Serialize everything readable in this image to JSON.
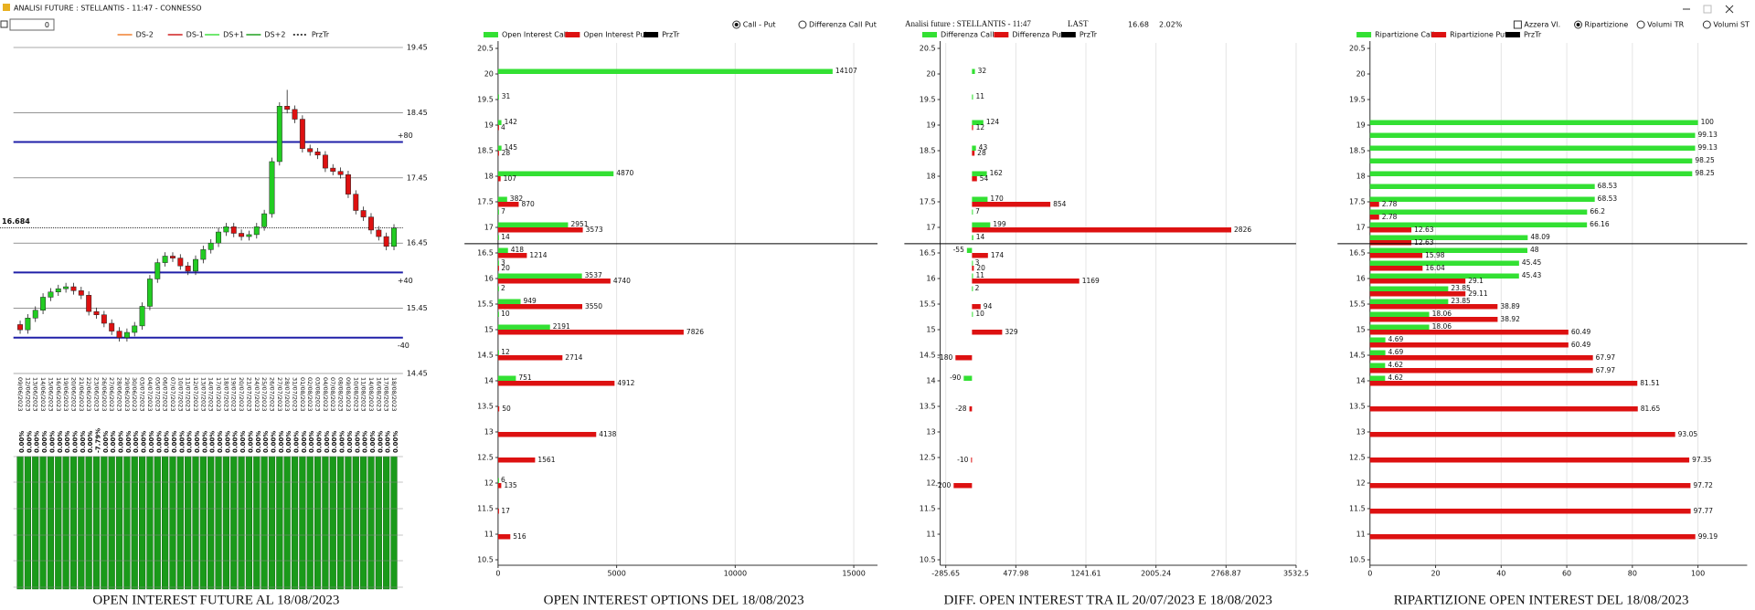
{
  "window": {
    "title": "ANALISI FUTURE : STELLANTIS - 11:47 - CONNESSO",
    "input_value": "0"
  },
  "header": {
    "title": "Analisi future : STELLANTIS - 11:47",
    "last_label": "LAST",
    "last": 16.68,
    "change": "2.02%"
  },
  "controls": {
    "options_mode": [
      {
        "label": "Call - Put",
        "checked": true
      },
      {
        "label": "Differenza Call Put",
        "checked": false
      }
    ],
    "reset": {
      "label": "Azzera Vl.",
      "checked": false
    },
    "split_mode": [
      {
        "label": "Ripartizione",
        "checked": true
      },
      {
        "label": "Volumi TR",
        "checked": false
      },
      {
        "label": "Volumi ST",
        "checked": false
      }
    ]
  },
  "chart_data": [
    {
      "type": "candlestick",
      "title": "OPEN INTEREST FUTURE AL 18/08/2023",
      "categories": [
        "09/06/2023",
        "12/06/2023",
        "13/06/2023",
        "14/06/2023",
        "15/06/2023",
        "16/06/2023",
        "19/06/2023",
        "20/06/2023",
        "21/06/2023",
        "22/06/2023",
        "23/06/2023",
        "26/06/2023",
        "27/06/2023",
        "28/06/2023",
        "29/06/2023",
        "30/06/2023",
        "03/07/2023",
        "04/07/2023",
        "05/07/2023",
        "06/07/2023",
        "07/07/2023",
        "10/07/2023",
        "11/07/2023",
        "12/07/2023",
        "13/07/2023",
        "14/07/2023",
        "17/07/2023",
        "18/07/2023",
        "19/07/2023",
        "20/07/2023",
        "21/07/2023",
        "24/07/2023",
        "25/07/2023",
        "26/07/2023",
        "27/07/2023",
        "28/07/2023",
        "31/07/2023",
        "01/08/2023",
        "02/08/2023",
        "03/08/2023",
        "04/08/2023",
        "07/08/2023",
        "08/08/2023",
        "09/08/2023",
        "10/08/2023",
        "11/08/2023",
        "14/08/2023",
        "16/08/2023",
        "17/08/2023",
        "18/08/2023"
      ],
      "open": [
        15.2,
        15.12,
        15.3,
        15.42,
        15.62,
        15.7,
        15.75,
        15.78,
        15.72,
        15.65,
        15.4,
        15.35,
        15.22,
        15.1,
        15.0,
        15.08,
        15.18,
        15.48,
        15.9,
        16.15,
        16.25,
        16.22,
        16.1,
        16.02,
        16.2,
        16.35,
        16.45,
        16.62,
        16.7,
        16.6,
        16.55,
        16.58,
        16.7,
        16.9,
        17.7,
        18.55,
        18.5,
        18.35,
        17.9,
        17.85,
        17.8,
        17.6,
        17.55,
        17.5,
        17.2,
        16.95,
        16.85,
        16.65,
        16.55,
        16.4
      ],
      "high": [
        15.26,
        15.36,
        15.48,
        15.68,
        15.76,
        15.81,
        15.84,
        15.84,
        15.78,
        15.71,
        15.46,
        15.41,
        15.28,
        15.16,
        15.14,
        15.24,
        15.54,
        15.96,
        16.21,
        16.31,
        16.31,
        16.28,
        16.16,
        16.26,
        16.41,
        16.51,
        16.68,
        16.76,
        16.76,
        16.66,
        16.64,
        16.76,
        16.96,
        17.76,
        18.61,
        18.8,
        18.56,
        18.41,
        17.96,
        17.91,
        17.86,
        17.66,
        17.61,
        17.56,
        17.26,
        17.01,
        16.91,
        16.71,
        16.61,
        16.74
      ],
      "low": [
        15.06,
        15.06,
        15.24,
        15.36,
        15.56,
        15.64,
        15.69,
        15.66,
        15.59,
        15.34,
        15.29,
        15.16,
        15.04,
        14.94,
        14.94,
        15.02,
        15.12,
        15.42,
        15.84,
        16.09,
        16.16,
        16.04,
        15.96,
        15.96,
        16.14,
        16.29,
        16.39,
        16.56,
        16.54,
        16.49,
        16.49,
        16.52,
        16.64,
        16.84,
        17.64,
        18.44,
        18.29,
        17.84,
        17.79,
        17.74,
        17.54,
        17.49,
        17.44,
        17.14,
        16.89,
        16.79,
        16.59,
        16.49,
        16.34,
        16.34
      ],
      "close": [
        15.12,
        15.3,
        15.42,
        15.62,
        15.7,
        15.75,
        15.78,
        15.72,
        15.65,
        15.4,
        15.35,
        15.22,
        15.1,
        15.0,
        15.08,
        15.18,
        15.48,
        15.9,
        16.15,
        16.25,
        16.22,
        16.1,
        16.02,
        16.2,
        16.35,
        16.45,
        16.62,
        16.7,
        16.6,
        16.55,
        16.58,
        16.7,
        16.9,
        17.7,
        18.55,
        18.5,
        18.35,
        17.9,
        17.85,
        17.8,
        17.6,
        17.55,
        17.5,
        17.2,
        16.95,
        16.85,
        16.65,
        16.55,
        16.4,
        16.68
      ],
      "up_color": "#22cc22",
      "down_color": "#dd1111",
      "ylim": [
        14.45,
        19.45
      ],
      "yticks": [
        19.45,
        18.45,
        17.45,
        16.45,
        15.45,
        14.45
      ],
      "levels": [
        {
          "value": 18,
          "label": "+80"
        },
        {
          "value": 16,
          "label": "+40"
        },
        {
          "value": 15,
          "label": "-40"
        }
      ],
      "level_color": "#2020a8",
      "price": 16.684,
      "legend": [
        {
          "name": "DS-2",
          "color": "#f08030"
        },
        {
          "name": "DS-1",
          "color": "#d02020"
        },
        {
          "name": "DS+1",
          "color": "#40e040"
        },
        {
          "name": "DS+2",
          "color": "#20a020"
        },
        {
          "name": "PrzTr",
          "color": "#000000",
          "dashed": true
        }
      ],
      "oi_labels": [
        "0.00%",
        "0.00%",
        "0.00%",
        "0.00%",
        "0.00%",
        "0.00%",
        "0.00%",
        "0.00%",
        "0.00%",
        "0.00%",
        "-7.79%",
        "0.00%",
        "0.00%",
        "0.00%",
        "0.00%",
        "0.00%",
        "0.00%",
        "0.00%",
        "0.00%",
        "0.00%",
        "0.00%",
        "0.00%",
        "0.00%",
        "0.00%",
        "0.00%",
        "0.00%",
        "0.00%",
        "0.00%",
        "0.00%",
        "0.00%",
        "0.00%",
        "0.00%",
        "0.00%",
        "0.00%",
        "0.00%",
        "0.00%",
        "0.00%",
        "0.00%",
        "0.00%",
        "0.00%",
        "0.00%",
        "0.00%",
        "0.00%",
        "0.00%",
        "0.00%",
        "0.00%",
        "0.00%",
        "0.00%",
        "0.00%",
        "0.00%"
      ],
      "oi_color": "#1a9a1a"
    },
    {
      "type": "hbar",
      "title": "OPEN INTEREST OPTIONS DEL 18/08/2023",
      "y": [
        20,
        19.5,
        19,
        18.5,
        18,
        17.5,
        17.25,
        17,
        16.75,
        16.5,
        16.25,
        16,
        15.75,
        15.5,
        15.25,
        15,
        14.5,
        14,
        13.5,
        13,
        12.5,
        12,
        11.5,
        11
      ],
      "series": [
        {
          "name": "Open Interest Call",
          "color": "#33e033",
          "values": [
            14107,
            31,
            142,
            145,
            4870,
            382,
            7,
            2951,
            14,
            418,
            3,
            3537,
            2,
            949,
            10,
            2191,
            12,
            751,
            null,
            null,
            null,
            6,
            null,
            null
          ]
        },
        {
          "name": "Open Interest Put",
          "color": "#dd1111",
          "values": [
            null,
            null,
            4,
            28,
            107,
            870,
            null,
            3573,
            null,
            1214,
            20,
            4740,
            null,
            3550,
            null,
            7826,
            2714,
            4912,
            50,
            4138,
            1561,
            135,
            17,
            516
          ]
        }
      ],
      "reference": {
        "name": "PrzTr",
        "color": "#000000",
        "value": 16.68
      },
      "xlim": [
        0,
        16000
      ],
      "xticks": [
        0,
        5000,
        10000,
        15000
      ],
      "ylim": [
        10.5,
        20.5
      ],
      "yticks": [
        20.5,
        20,
        19.5,
        19,
        18.5,
        18,
        17.5,
        17,
        16.5,
        16,
        15.5,
        15,
        14.5,
        14,
        13.5,
        13,
        12.5,
        12,
        11.5,
        11,
        10.5
      ]
    },
    {
      "type": "hbar",
      "title": "DIFF. OPEN INTEREST TRA IL 20/07/2023 E 18/08/2023",
      "y": [
        20,
        19.5,
        19,
        18.5,
        18,
        17.5,
        17.25,
        17,
        16.75,
        16.5,
        16.25,
        16,
        15.75,
        15.5,
        15.25,
        15,
        14.5,
        14,
        13.5,
        12.5,
        12
      ],
      "series": [
        {
          "name": "Differenza Call",
          "color": "#33e033",
          "values": [
            32,
            11,
            124,
            43,
            162,
            170,
            7,
            199,
            14,
            -55,
            3,
            11,
            2,
            null,
            10,
            null,
            null,
            -90,
            null,
            null,
            null
          ]
        },
        {
          "name": "Differenza Put",
          "color": "#dd1111",
          "values": [
            null,
            null,
            12,
            28,
            54,
            854,
            null,
            2826,
            null,
            174,
            20,
            1169,
            null,
            94,
            null,
            329,
            -180,
            null,
            -28,
            -10,
            -200
          ]
        }
      ],
      "reference": {
        "name": "PrzTr",
        "color": "#000000",
        "value": 16.68
      },
      "xlim": [
        -285.65,
        3532.5
      ],
      "xticks": [
        -285.65,
        477.98,
        1241.61,
        2005.24,
        2768.87,
        3532.5
      ],
      "ylim": [
        10.5,
        20.5
      ],
      "yticks": [
        20.5,
        20,
        19.5,
        19,
        18.5,
        18,
        17.5,
        17,
        16.5,
        16,
        15.5,
        15,
        14.5,
        14,
        13.5,
        13,
        12.5,
        12,
        11.5,
        11,
        10.5
      ]
    },
    {
      "type": "hbar",
      "title": "RIPARTIZIONE OPEN INTEREST DEL 18/08/2023",
      "y": [
        19,
        18.75,
        18.5,
        18.25,
        18,
        17.75,
        17.5,
        17.25,
        17,
        16.75,
        16.5,
        16.25,
        16,
        15.75,
        15.5,
        15.25,
        15,
        14.75,
        14.5,
        14.25,
        14,
        13.5,
        13,
        12.5,
        12,
        11.5,
        11
      ],
      "series": [
        {
          "name": "Ripartizione Call",
          "color": "#33e033",
          "values": [
            100,
            99.13,
            99.13,
            98.25,
            98.25,
            68.53,
            68.53,
            66.2,
            66.16,
            48.09,
            48,
            45.45,
            45.43,
            23.85,
            23.85,
            18.06,
            18.06,
            4.69,
            4.69,
            4.62,
            4.62,
            null,
            null,
            null,
            null,
            null,
            null
          ]
        },
        {
          "name": "Ripartizione Put",
          "color": "#dd1111",
          "values": [
            null,
            null,
            null,
            null,
            null,
            null,
            2.78,
            2.78,
            12.63,
            12.63,
            15.98,
            16.04,
            29.1,
            29.11,
            38.89,
            38.92,
            60.49,
            60.49,
            67.97,
            67.97,
            81.51,
            81.65,
            93.05,
            97.35,
            97.72,
            97.77,
            99.19
          ]
        }
      ],
      "reference": {
        "name": "PrzTr",
        "color": "#000000",
        "value": 16.68
      },
      "xlim": [
        0,
        115
      ],
      "xticks": [
        0,
        20,
        40,
        60,
        80,
        100
      ],
      "ylim": [
        10.5,
        20.5
      ],
      "yticks": [
        20.5,
        20,
        19.5,
        19,
        18.5,
        18,
        17.5,
        17,
        16.5,
        16,
        15.5,
        15,
        14.5,
        14,
        13.5,
        13,
        12.5,
        12,
        11.5,
        11,
        10.5
      ]
    }
  ]
}
